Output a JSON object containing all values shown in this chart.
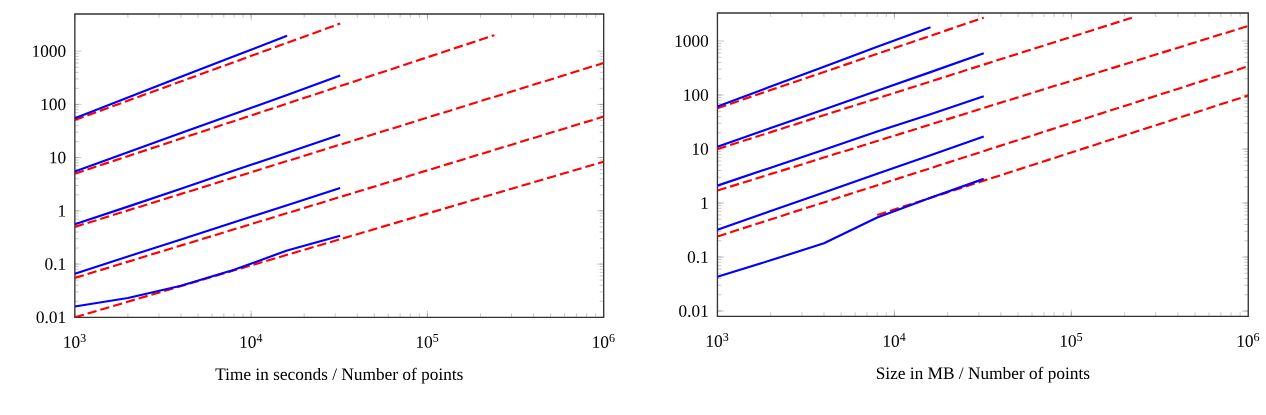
{
  "chart_data": [
    {
      "type": "line",
      "xlabel": "Time in seconds / Number of points",
      "log": "xy",
      "grid": false,
      "xlim": [
        1000,
        1000000
      ],
      "ylim": [
        0.01,
        5000
      ],
      "xticks": [
        {
          "value": 1000,
          "label": "10$^{3}$"
        },
        {
          "value": 10000,
          "label": "10$^{4}$"
        },
        {
          "value": 100000,
          "label": "10$^{5}$"
        },
        {
          "value": 1000000,
          "label": "10$^{6}$"
        }
      ],
      "yticks": [
        {
          "value": 0.01,
          "label": "0.01"
        },
        {
          "value": 0.1,
          "label": "0.1"
        },
        {
          "value": 1,
          "label": "1"
        },
        {
          "value": 10,
          "label": "10"
        },
        {
          "value": 100,
          "label": "100"
        },
        {
          "value": 1000,
          "label": "1000"
        }
      ],
      "series": [
        {
          "color": "#ff0000",
          "line_style": "dashed",
          "x": [
            1000,
            32000
          ],
          "values": [
            51,
            3300
          ]
        },
        {
          "color": "#ff0000",
          "line_style": "dashed",
          "x": [
            1000,
            240000
          ],
          "values": [
            5,
            2000
          ]
        },
        {
          "color": "#ff0000",
          "line_style": "dashed",
          "x": [
            1000,
            1000000
          ],
          "values": [
            0.5,
            600
          ]
        },
        {
          "color": "#ff0000",
          "line_style": "dashed",
          "x": [
            1000,
            1000000
          ],
          "values": [
            0.055,
            59
          ]
        },
        {
          "color": "#ff0000",
          "line_style": "dashed",
          "x": [
            1000,
            1000000
          ],
          "values": [
            0.01,
            8.4
          ]
        },
        {
          "color": "#0000ff",
          "line_style": "solid",
          "x": [
            1000,
            2000,
            4000,
            8000,
            16000
          ],
          "values": [
            55,
            135,
            330,
            800,
            1950
          ]
        },
        {
          "color": "#0000ff",
          "line_style": "solid",
          "x": [
            1000,
            2000,
            4000,
            8000,
            16000,
            32000
          ],
          "values": [
            5.5,
            12.6,
            29,
            66,
            150,
            350
          ]
        },
        {
          "color": "#0000ff",
          "line_style": "solid",
          "x": [
            1000,
            2000,
            4000,
            8000,
            16000,
            32000
          ],
          "values": [
            0.56,
            1.2,
            2.6,
            5.7,
            12.4,
            27
          ]
        },
        {
          "color": "#0000ff",
          "line_style": "solid",
          "x": [
            1000,
            2000,
            4000,
            8000,
            16000,
            32000
          ],
          "values": [
            0.066,
            0.139,
            0.29,
            0.61,
            1.28,
            2.7
          ]
        },
        {
          "color": "#0000ff",
          "line_style": "solid",
          "x": [
            1000,
            2000,
            4000,
            8000,
            16000,
            32000
          ],
          "values": [
            0.016,
            0.023,
            0.039,
            0.078,
            0.18,
            0.34
          ]
        }
      ]
    },
    {
      "type": "line",
      "xlabel": "Size in MB / Number of points",
      "log": "xy",
      "grid": false,
      "xlim": [
        1000,
        1000000
      ],
      "ylim": [
        0.008,
        3300
      ],
      "xticks": [
        {
          "value": 1000,
          "label": "10$^{3}$"
        },
        {
          "value": 10000,
          "label": "10$^{4}$"
        },
        {
          "value": 100000,
          "label": "10$^{5}$"
        },
        {
          "value": 1000000,
          "label": "10$^{6}$"
        }
      ],
      "yticks": [
        {
          "value": 0.01,
          "label": "0.01"
        },
        {
          "value": 0.1,
          "label": "0.1"
        },
        {
          "value": 1,
          "label": "1"
        },
        {
          "value": 10,
          "label": "10"
        },
        {
          "value": 100,
          "label": "100"
        },
        {
          "value": 1000,
          "label": "1000"
        }
      ],
      "series": [
        {
          "color": "#ff0000",
          "line_style": "dashed",
          "x": [
            1000,
            32000
          ],
          "values": [
            57,
            2700
          ]
        },
        {
          "color": "#ff0000",
          "line_style": "dashed",
          "x": [
            1000,
            220000
          ],
          "values": [
            10,
            2700
          ]
        },
        {
          "color": "#ff0000",
          "line_style": "dashed",
          "x": [
            1000,
            1000000
          ],
          "values": [
            1.7,
            1900
          ]
        },
        {
          "color": "#ff0000",
          "line_style": "dashed",
          "x": [
            1000,
            1000000
          ],
          "values": [
            0.24,
            340
          ]
        },
        {
          "color": "#ff0000",
          "line_style": "dashed",
          "x": [
            8000,
            1000000
          ],
          "values": [
            0.6,
            98
          ]
        },
        {
          "color": "#0000ff",
          "line_style": "solid",
          "x": [
            1000,
            2000,
            4000,
            8000,
            16000
          ],
          "values": [
            61,
            143,
            335,
            780,
            1800
          ]
        },
        {
          "color": "#0000ff",
          "line_style": "solid",
          "x": [
            1000,
            2000,
            4000,
            8000,
            16000,
            32000
          ],
          "values": [
            11,
            24.5,
            54,
            120,
            265,
            590
          ]
        },
        {
          "color": "#0000ff",
          "line_style": "solid",
          "x": [
            1000,
            2000,
            4000,
            8000,
            16000,
            32000
          ],
          "values": [
            2.1,
            4.5,
            9.7,
            21,
            44,
            95
          ]
        },
        {
          "color": "#0000ff",
          "line_style": "solid",
          "x": [
            1000,
            2000,
            4000,
            8000,
            16000,
            32000
          ],
          "values": [
            0.32,
            0.71,
            1.57,
            3.5,
            7.7,
            17
          ]
        },
        {
          "color": "#0000ff",
          "line_style": "solid",
          "x": [
            1000,
            2000,
            4000,
            8000,
            16000,
            32000
          ],
          "values": [
            0.043,
            0.087,
            0.18,
            0.54,
            1.25,
            2.8
          ]
        }
      ]
    }
  ]
}
